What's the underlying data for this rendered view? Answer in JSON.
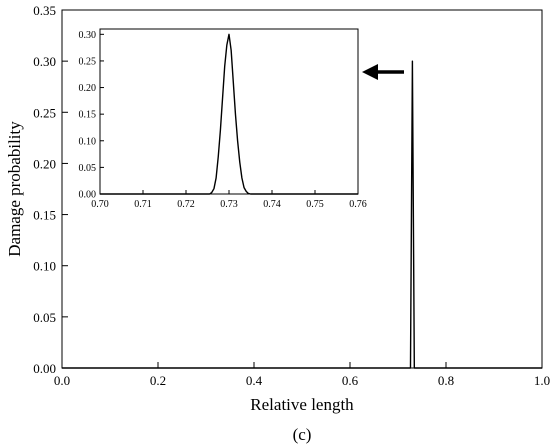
{
  "panel_label": "(c)",
  "chart_data": [
    {
      "type": "line",
      "xlabel": "Relative length",
      "ylabel": "Damage probability",
      "xlim": [
        0.0,
        1.0
      ],
      "ylim": [
        0.0,
        0.35
      ],
      "x_ticks": [
        "0.0",
        "0.2",
        "0.4",
        "0.6",
        "0.8",
        "1.0"
      ],
      "y_ticks": [
        "0.00",
        "0.05",
        "0.10",
        "0.15",
        "0.20",
        "0.25",
        "0.30",
        "0.35"
      ],
      "grid": false,
      "series": [
        {
          "color": "#000000",
          "x": [
            0.0,
            0.726,
            0.728,
            0.73,
            0.732,
            0.734,
            1.0
          ],
          "y": [
            0.0,
            0.0,
            0.15,
            0.3,
            0.15,
            0.0,
            0.0
          ]
        }
      ],
      "annotation": "arrow pointing left toward the peak"
    },
    {
      "type": "line",
      "role": "inset",
      "xlim": [
        0.7,
        0.76
      ],
      "ylim": [
        0.0,
        0.31
      ],
      "x_ticks": [
        "0.70",
        "0.71",
        "0.72",
        "0.73",
        "0.74",
        "0.75",
        "0.76"
      ],
      "y_ticks": [
        "0.00",
        "0.05",
        "0.10",
        "0.15",
        "0.20",
        "0.25",
        "0.30"
      ],
      "grid": false,
      "series": [
        {
          "color": "#000000",
          "x": [
            0.7,
            0.7255,
            0.726,
            0.7265,
            0.727,
            0.7275,
            0.728,
            0.7285,
            0.729,
            0.7295,
            0.73,
            0.7305,
            0.731,
            0.7315,
            0.732,
            0.7325,
            0.733,
            0.7335,
            0.734,
            0.7345,
            0.735,
            0.76
          ],
          "y": [
            0.0,
            0.0,
            0.003,
            0.01,
            0.03,
            0.07,
            0.12,
            0.18,
            0.24,
            0.28,
            0.3,
            0.27,
            0.21,
            0.15,
            0.1,
            0.06,
            0.03,
            0.012,
            0.005,
            0.001,
            0.0,
            0.0
          ]
        }
      ]
    }
  ]
}
